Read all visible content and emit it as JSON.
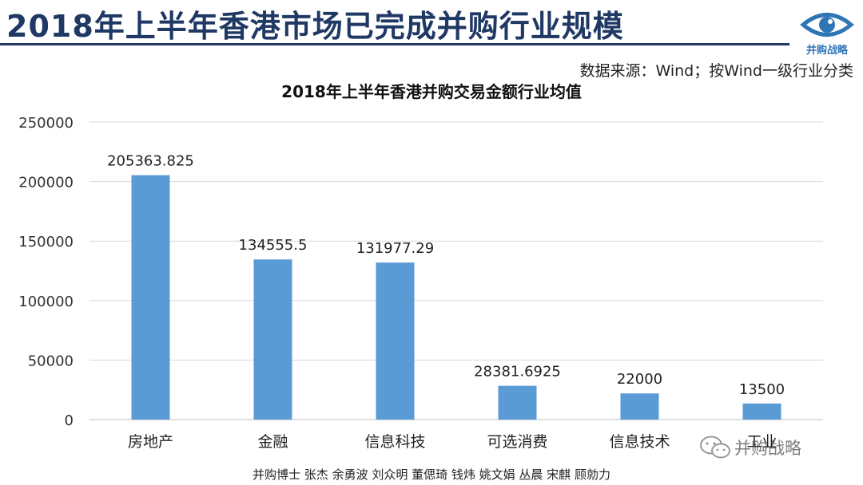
{
  "header": {
    "title": "2018年上半年香港市场已完成并购行业规模",
    "logo_text": "并购战略"
  },
  "source_note": "数据来源：Wind；按Wind一级行业分类",
  "footer": {
    "authors": "并购博士 张杰 余勇波 刘众明 董偲琦 钱炜 姚文娟 丛晨 宋麒 顾勍力"
  },
  "watermark": {
    "text": "并购战略",
    "icon": "wechat-icon"
  },
  "colors": {
    "title": "#1f3864",
    "bar": "#5b9bd5",
    "grid": "#d9d9d9",
    "logo": "#2e75b6"
  },
  "chart_data": {
    "type": "bar",
    "title": "2018年上半年香港并购交易金额行业均值",
    "categories": [
      "房地产",
      "金融",
      "信息科技",
      "可选消费",
      "信息技术",
      "工业"
    ],
    "values": [
      205363.825,
      134555.5,
      131977.29,
      28381.6925,
      22000,
      13500
    ],
    "data_labels": [
      "205363.825",
      "134555.5",
      "131977.29",
      "28381.6925",
      "22000",
      "13500"
    ],
    "ylim": [
      0,
      250000
    ],
    "yticks": [
      0,
      50000,
      100000,
      150000,
      200000,
      250000
    ],
    "ytick_labels": [
      "0",
      "50000",
      "100000",
      "150000",
      "200000",
      "250000"
    ],
    "grid": true,
    "legend": "none"
  }
}
